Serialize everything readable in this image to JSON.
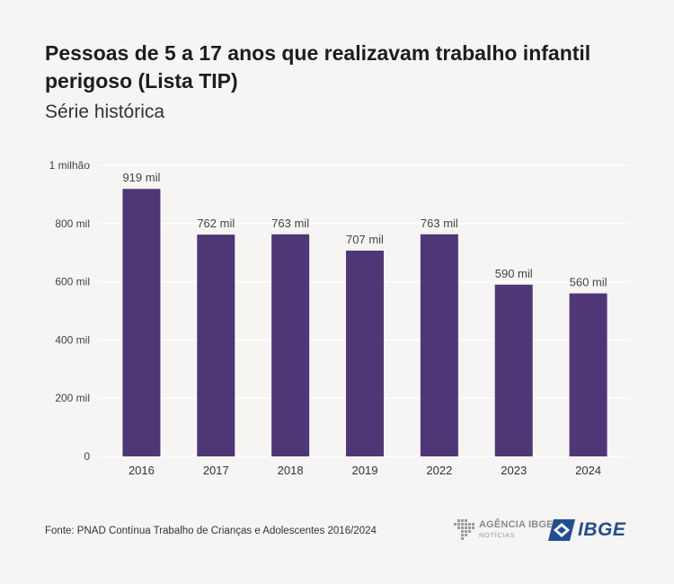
{
  "title": "Pessoas de 5 a 17 anos que realizavam trabalho infantil perigoso (Lista TIP)",
  "subtitle": "Série histórica",
  "source": "Fonte: PNAD Contínua Trabalho de Crianças e Adolescentes 2016/2024",
  "logos": {
    "agencia_name": "AGÊNCIA IBGE",
    "agencia_sub": "NOTÍCIAS",
    "ibge_word": "IBGE"
  },
  "colors": {
    "bar": "#4f3777",
    "grid": "#ffffff",
    "background": "#f6f5f3",
    "ibge_blue": "#1f4e96"
  },
  "chart_data": {
    "type": "bar",
    "title": "Pessoas de 5 a 17 anos que realizavam trabalho infantil perigoso (Lista TIP)",
    "subtitle": "Série histórica",
    "xlabel": "",
    "ylabel": "",
    "categories": [
      "2016",
      "2017",
      "2018",
      "2019",
      "2022",
      "2023",
      "2024"
    ],
    "values": [
      919,
      762,
      763,
      707,
      763,
      590,
      560
    ],
    "data_labels": [
      "919 mil",
      "762 mil",
      "763 mil",
      "707 mil",
      "763 mil",
      "590 mil",
      "560 mil"
    ],
    "unit": "mil",
    "ylim": [
      0,
      1000
    ],
    "yticks": [
      0,
      200,
      400,
      600,
      800,
      1000
    ],
    "ytick_labels": [
      "0",
      "200 mil",
      "400 mil",
      "600 mil",
      "800 mil",
      "1 milhão"
    ],
    "grid": true,
    "legend": "none"
  }
}
